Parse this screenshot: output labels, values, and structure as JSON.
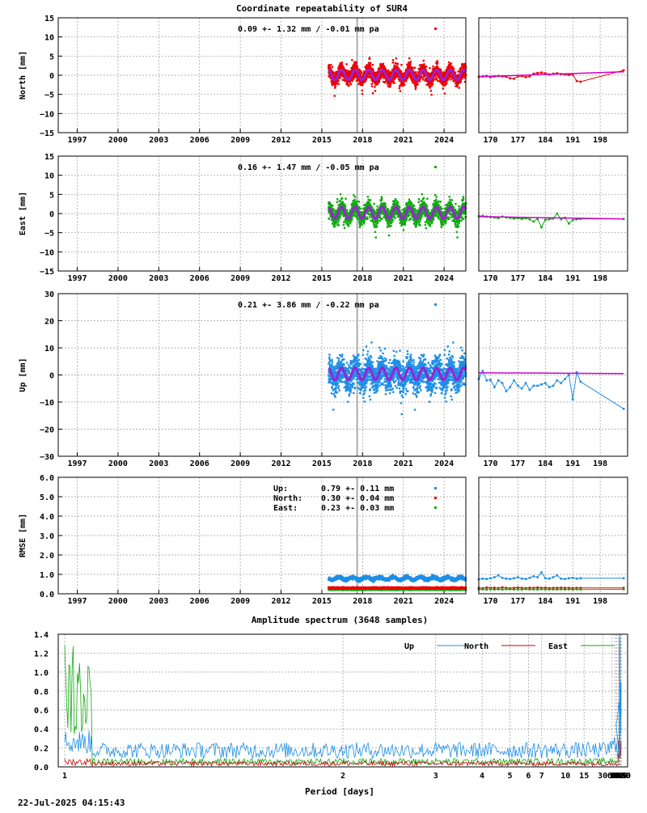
{
  "title": "Coordinate repeatability of SUR4",
  "footer_timestamp": "22-Jul-2025 04:15:43",
  "colors": {
    "north": "#ee0000",
    "east": "#11aa11",
    "up": "#1e8fe6",
    "model": "#9a22d6",
    "short_model": "#cc00cc",
    "event_line": "#aaaaaa",
    "grid": "#999999"
  },
  "chart_data": [
    {
      "id": "north",
      "type": "scatter",
      "ylabel": "North [mm]",
      "ylim": [
        -15,
        15
      ],
      "yticks": [
        -15,
        -10,
        -5,
        0,
        5,
        10,
        15
      ],
      "xlim": [
        1995.6,
        2025.6
      ],
      "xticks": [
        1997,
        2000,
        2003,
        2006,
        2009,
        2012,
        2015,
        2018,
        2021,
        2024
      ],
      "data_start": 2015.5,
      "event": 2017.6,
      "annotation": "0.09 +- 1.32 mm / -0.01 mm pa",
      "season": {
        "amplitude": 1.3,
        "offset": 0.1,
        "scatter": 1.3
      },
      "short": {
        "xticks": [
          170,
          177,
          184,
          191,
          198
        ],
        "xlim": [
          167,
          205
        ],
        "ylim": [
          -15,
          15
        ],
        "x": [
          167,
          168,
          169,
          170,
          171,
          172,
          173,
          174,
          175,
          176,
          177,
          178,
          179,
          180,
          181,
          182,
          183,
          184,
          185,
          186,
          187,
          188,
          189,
          190,
          191,
          192,
          193,
          204
        ],
        "y": [
          -0.4,
          -0.3,
          -0.2,
          -0.5,
          -0.3,
          -0.2,
          -0.3,
          -0.4,
          -0.8,
          -0.9,
          -0.3,
          -0.2,
          -0.5,
          -0.3,
          0.4,
          0.6,
          0.7,
          0.5,
          0.2,
          0.4,
          0.5,
          0.3,
          0.2,
          0.1,
          0.2,
          -1.5,
          -1.7,
          1.3
        ],
        "model": [
          -0.4,
          0.9
        ]
      }
    },
    {
      "id": "east",
      "type": "scatter",
      "ylabel": "East [mm]",
      "ylim": [
        -15,
        15
      ],
      "yticks": [
        -15,
        -10,
        -5,
        0,
        5,
        10,
        15
      ],
      "xlim": [
        1995.6,
        2025.6
      ],
      "xticks": [
        1997,
        2000,
        2003,
        2006,
        2009,
        2012,
        2015,
        2018,
        2021,
        2024
      ],
      "data_start": 2015.5,
      "event": 2017.6,
      "annotation": "0.16 +- 1.47 mm / -0.05 mm pa",
      "season": {
        "amplitude": 1.5,
        "offset": 0.2,
        "scatter": 1.5
      },
      "short": {
        "xticks": [
          170,
          177,
          184,
          191,
          198
        ],
        "xlim": [
          167,
          205
        ],
        "ylim": [
          -15,
          15
        ],
        "x": [
          167,
          168,
          169,
          170,
          171,
          172,
          173,
          174,
          175,
          176,
          177,
          178,
          179,
          180,
          181,
          182,
          183,
          184,
          185,
          186,
          187,
          188,
          189,
          190,
          191,
          192,
          193,
          204
        ],
        "y": [
          -0.7,
          -0.6,
          -0.8,
          -0.9,
          -1.0,
          -1.2,
          -0.8,
          -1.0,
          -1.1,
          -1.3,
          -1.2,
          -1.4,
          -1.2,
          -1.5,
          -2.1,
          -1.4,
          -3.6,
          -1.6,
          -1.5,
          -1.3,
          0.0,
          -1.5,
          -1.1,
          -2.6,
          -1.7,
          -1.5,
          -1.4,
          -1.4
        ],
        "model": [
          -0.8,
          -1.4
        ]
      }
    },
    {
      "id": "up",
      "type": "scatter",
      "ylabel": "Up [mm]",
      "ylim": [
        -30,
        30
      ],
      "yticks": [
        -30,
        -20,
        -10,
        0,
        10,
        20,
        30
      ],
      "xlim": [
        1995.6,
        2025.6
      ],
      "xticks": [
        1997,
        2000,
        2003,
        2006,
        2009,
        2012,
        2015,
        2018,
        2021,
        2024
      ],
      "data_start": 2015.5,
      "event": 2017.6,
      "annotation": "0.21 +- 3.86 mm / -0.22 mm pa",
      "season": {
        "amplitude": 2.2,
        "offset": 0.4,
        "scatter": 3.9
      },
      "short": {
        "xticks": [
          170,
          177,
          184,
          191,
          198
        ],
        "xlim": [
          167,
          205
        ],
        "ylim": [
          -30,
          30
        ],
        "x": [
          167,
          168,
          169,
          170,
          171,
          172,
          173,
          174,
          175,
          176,
          177,
          178,
          179,
          180,
          181,
          182,
          183,
          184,
          185,
          186,
          187,
          188,
          189,
          190,
          191,
          192,
          193,
          204
        ],
        "y": [
          -1.5,
          1.5,
          -2.0,
          -1.8,
          -4.5,
          -2.0,
          -3.0,
          -6.0,
          -4.5,
          -2.0,
          -4.0,
          -5.0,
          -3.0,
          -5.5,
          -4.0,
          -4.0,
          -3.5,
          -3.0,
          -4.5,
          -4.0,
          -2.0,
          -3.0,
          -1.5,
          0.0,
          -9.0,
          1.0,
          -2.5,
          -12.5
        ],
        "model": [
          0.8,
          0.5
        ]
      }
    },
    {
      "id": "rmse",
      "type": "scatter",
      "ylabel": "RMSE [mm]",
      "ylim": [
        0,
        6
      ],
      "yticks": [
        0.0,
        1.0,
        2.0,
        3.0,
        4.0,
        5.0,
        6.0
      ],
      "yfmt": 1,
      "xlim": [
        1995.6,
        2025.6
      ],
      "xticks": [
        1997,
        2000,
        2003,
        2006,
        2009,
        2012,
        2015,
        2018,
        2021,
        2024
      ],
      "data_start": 2015.5,
      "event": 2017.6,
      "legend": [
        {
          "name": "Up:",
          "text": "0.79 +- 0.11 mm",
          "series": "up"
        },
        {
          "name": "North:",
          "text": "0.30 +- 0.04 mm",
          "series": "north"
        },
        {
          "name": "East:",
          "text": "0.23 +- 0.03 mm",
          "series": "east"
        }
      ],
      "levels": {
        "up": 0.79,
        "north": 0.3,
        "east": 0.23
      },
      "short": {
        "xticks": [
          170,
          177,
          184,
          191,
          198
        ],
        "xlim": [
          167,
          205
        ],
        "ylim": [
          0,
          6
        ],
        "x": [
          167,
          168,
          169,
          170,
          171,
          172,
          173,
          174,
          175,
          176,
          177,
          178,
          179,
          180,
          181,
          182,
          183,
          184,
          185,
          186,
          187,
          188,
          189,
          190,
          191,
          192,
          193,
          204
        ],
        "up": [
          0.75,
          0.78,
          0.76,
          0.8,
          0.85,
          0.95,
          0.82,
          0.78,
          0.76,
          0.8,
          0.85,
          0.78,
          0.76,
          0.82,
          0.9,
          0.85,
          1.1,
          0.8,
          0.78,
          0.85,
          0.95,
          0.78,
          0.76,
          0.8,
          0.82,
          0.78,
          0.8,
          0.8
        ],
        "north": [
          0.3,
          0.28,
          0.32,
          0.3,
          0.31,
          0.29,
          0.33,
          0.3,
          0.28,
          0.3,
          0.32,
          0.3,
          0.29,
          0.31,
          0.3,
          0.32,
          0.3,
          0.31,
          0.29,
          0.3,
          0.3,
          0.31,
          0.3,
          0.3,
          0.29,
          0.3,
          0.3,
          0.3
        ],
        "east": [
          0.22,
          0.23,
          0.21,
          0.24,
          0.22,
          0.23,
          0.22,
          0.24,
          0.23,
          0.22,
          0.23,
          0.22,
          0.24,
          0.22,
          0.23,
          0.22,
          0.24,
          0.23,
          0.22,
          0.23,
          0.22,
          0.23,
          0.22,
          0.23,
          0.22,
          0.23,
          0.22,
          0.23
        ]
      }
    },
    {
      "id": "spectrum",
      "type": "line",
      "title": "Amplitude spectrum (3648 samples)",
      "xlabel": "Period [days]",
      "xscale": "reciprocal",
      "xticks": [
        1,
        2,
        3,
        4,
        5,
        6,
        7,
        10,
        15,
        30,
        61,
        91,
        122,
        183,
        365,
        730,
        2190,
        4380,
        8760
      ],
      "ylim": [
        0,
        1.4
      ],
      "yticks": [
        0.0,
        0.2,
        0.4,
        0.6,
        0.8,
        1.0,
        1.2,
        1.4
      ],
      "series": [
        {
          "name": "Up",
          "color": "#1e8fe6",
          "peaks": [
            [
              2190,
              0.35
            ],
            [
              4000,
              0.88
            ],
            [
              912,
              0.9
            ],
            [
              1460,
              0.57
            ],
            [
              617,
              0.6
            ],
            [
              400,
              0.45
            ],
            [
              300,
              0.58
            ],
            [
              240,
              0.68
            ],
            [
              150,
              0.52
            ],
            [
              110,
              0.45
            ]
          ],
          "noise": [
            0.09,
            0.26
          ],
          "peak365": 1.38
        },
        {
          "name": "North",
          "color": "#cc0000",
          "peaks": [
            [
              4000,
              0.26
            ],
            [
              2190,
              0.2
            ],
            [
              1095,
              0.14
            ],
            [
              500,
              0.09
            ],
            [
              200,
              0.28
            ]
          ],
          "noise": [
            0.01,
            0.06
          ],
          "peak365": 1.3
        },
        {
          "name": "East",
          "color": "#11aa11",
          "peaks": [
            [
              4000,
              0.28
            ],
            [
              2190,
              0.2
            ],
            [
              1095,
              0.14
            ],
            [
              500,
              0.12
            ],
            [
              250,
              0.11
            ]
          ],
          "noise": [
            0.02,
            0.09
          ],
          "peak365": 1.35
        }
      ]
    }
  ]
}
